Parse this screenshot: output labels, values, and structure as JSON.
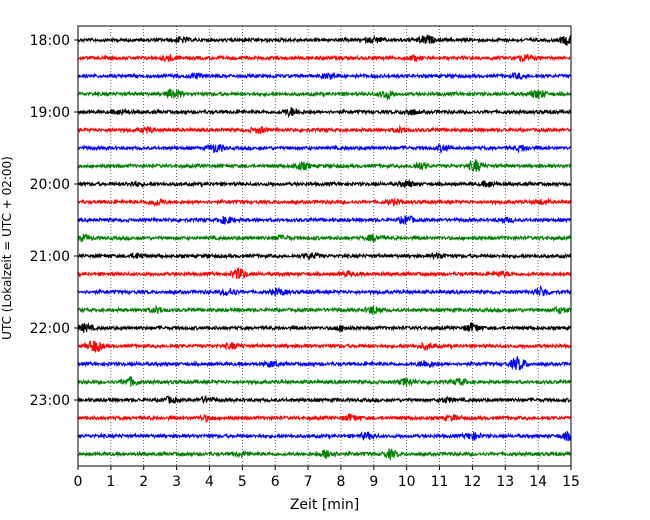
{
  "chart_data": {
    "type": "line",
    "title": "",
    "xlabel": "Zeit  [min]",
    "ylabel": "UTC (Lokalzeit = UTC + 02:00)",
    "xlim": [
      0,
      15
    ],
    "x_ticks": [
      "0",
      "1",
      "2",
      "3",
      "4",
      "5",
      "6",
      "7",
      "8",
      "9",
      "10",
      "11",
      "12",
      "13",
      "14",
      "15"
    ],
    "y_ticks": [
      "18:00",
      "19:00",
      "20:00",
      "21:00",
      "22:00",
      "23:00"
    ],
    "grid": "vertical dotted",
    "trace_colors": [
      "#000000",
      "#ff0000",
      "#0000ff",
      "#008000"
    ],
    "traces": [
      {
        "start": "18:00",
        "color": "#000000",
        "bursts": [
          [
            3.1,
            0.6
          ],
          [
            9.0,
            0.6
          ],
          [
            10.6,
            1.0
          ],
          [
            14.9,
            1.0
          ]
        ]
      },
      {
        "start": "18:15",
        "color": "#ff0000",
        "bursts": [
          [
            2.8,
            0.6
          ],
          [
            10.2,
            0.5
          ],
          [
            13.6,
            0.6
          ]
        ]
      },
      {
        "start": "18:30",
        "color": "#0000ff",
        "bursts": [
          [
            3.6,
            0.5
          ],
          [
            7.6,
            0.5
          ],
          [
            13.4,
            0.5
          ]
        ]
      },
      {
        "start": "18:45",
        "color": "#008000",
        "bursts": [
          [
            2.9,
            1.2
          ],
          [
            9.4,
            1.0
          ],
          [
            14.0,
            1.0
          ]
        ]
      },
      {
        "start": "19:00",
        "color": "#000000",
        "bursts": [
          [
            1.3,
            0.5
          ],
          [
            6.5,
            0.9
          ],
          [
            10.1,
            0.6
          ]
        ]
      },
      {
        "start": "19:15",
        "color": "#ff0000",
        "bursts": [
          [
            2.1,
            0.6
          ],
          [
            5.5,
            0.6
          ],
          [
            9.8,
            0.5
          ]
        ]
      },
      {
        "start": "19:30",
        "color": "#0000ff",
        "bursts": [
          [
            4.2,
            1.0
          ],
          [
            11.1,
            0.7
          ],
          [
            13.5,
            0.6
          ]
        ]
      },
      {
        "start": "19:45",
        "color": "#008000",
        "bursts": [
          [
            6.8,
            0.8
          ],
          [
            10.4,
            0.8
          ],
          [
            12.1,
            1.3
          ]
        ]
      },
      {
        "start": "20:00",
        "color": "#000000",
        "bursts": [
          [
            1.7,
            0.5
          ],
          [
            10.0,
            0.7
          ],
          [
            12.5,
            0.6
          ]
        ]
      },
      {
        "start": "20:15",
        "color": "#ff0000",
        "bursts": [
          [
            2.4,
            0.7
          ],
          [
            9.6,
            0.5
          ],
          [
            14.1,
            0.5
          ]
        ]
      },
      {
        "start": "20:30",
        "color": "#0000ff",
        "bursts": [
          [
            4.5,
            0.8
          ],
          [
            10.0,
            0.9
          ],
          [
            13.0,
            0.5
          ]
        ]
      },
      {
        "start": "20:45",
        "color": "#008000",
        "bursts": [
          [
            0.2,
            0.6
          ],
          [
            6.2,
            0.5
          ],
          [
            9.0,
            0.7
          ]
        ]
      },
      {
        "start": "21:00",
        "color": "#000000",
        "bursts": [
          [
            1.8,
            0.5
          ],
          [
            7.1,
            0.6
          ],
          [
            11.0,
            0.5
          ]
        ]
      },
      {
        "start": "21:15",
        "color": "#ff0000",
        "bursts": [
          [
            4.9,
            1.2
          ],
          [
            8.2,
            0.5
          ],
          [
            12.9,
            0.5
          ]
        ]
      },
      {
        "start": "21:30",
        "color": "#0000ff",
        "bursts": [
          [
            4.6,
            0.8
          ],
          [
            6.1,
            0.7
          ],
          [
            14.1,
            1.0
          ]
        ]
      },
      {
        "start": "21:45",
        "color": "#008000",
        "bursts": [
          [
            2.4,
            0.6
          ],
          [
            9.0,
            0.9
          ],
          [
            14.7,
            0.6
          ]
        ]
      },
      {
        "start": "22:00",
        "color": "#000000",
        "bursts": [
          [
            0.2,
            0.9
          ],
          [
            8.0,
            0.5
          ],
          [
            12.0,
            1.0
          ]
        ]
      },
      {
        "start": "22:15",
        "color": "#ff0000",
        "bursts": [
          [
            0.5,
            1.4
          ],
          [
            4.7,
            0.6
          ],
          [
            10.6,
            0.6
          ]
        ]
      },
      {
        "start": "22:30",
        "color": "#0000ff",
        "bursts": [
          [
            5.9,
            0.6
          ],
          [
            10.6,
            0.8
          ],
          [
            13.4,
            1.5
          ]
        ]
      },
      {
        "start": "22:45",
        "color": "#008000",
        "bursts": [
          [
            1.6,
            0.9
          ],
          [
            10.0,
            0.8
          ],
          [
            11.6,
            0.7
          ]
        ]
      },
      {
        "start": "23:00",
        "color": "#000000",
        "bursts": [
          [
            2.8,
            0.6
          ],
          [
            3.9,
            0.6
          ],
          [
            11.2,
            0.5
          ]
        ]
      },
      {
        "start": "23:15",
        "color": "#ff0000",
        "bursts": [
          [
            3.9,
            0.5
          ],
          [
            8.3,
            0.7
          ],
          [
            11.4,
            0.5
          ]
        ]
      },
      {
        "start": "23:30",
        "color": "#0000ff",
        "bursts": [
          [
            8.8,
            0.7
          ],
          [
            12.0,
            0.8
          ],
          [
            14.9,
            0.8
          ]
        ]
      },
      {
        "start": "23:45",
        "color": "#008000",
        "bursts": [
          [
            5.0,
            0.5
          ],
          [
            7.6,
            1.0
          ],
          [
            9.5,
            0.9
          ]
        ]
      }
    ]
  }
}
